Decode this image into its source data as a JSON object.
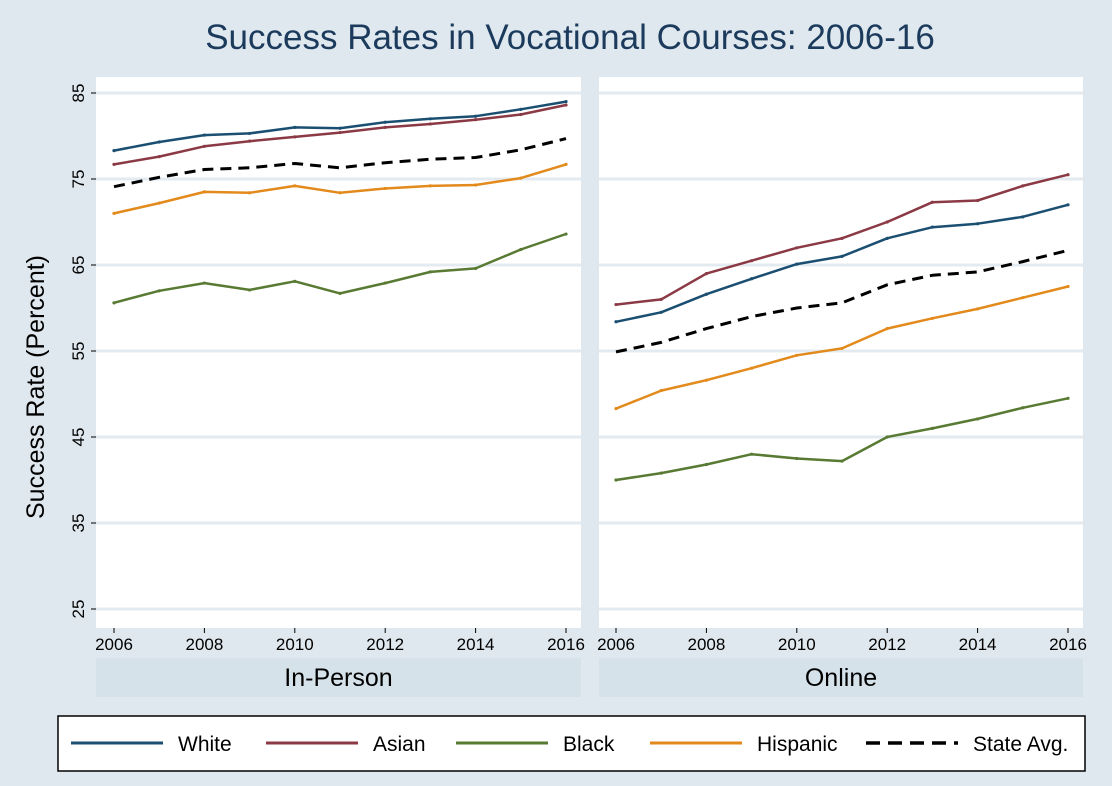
{
  "chart_data": {
    "type": "line",
    "title": "Success Rates in Vocational Courses: 2006-16",
    "ylabel": "Success Rate (Percent)",
    "ylim": [
      25,
      87
    ],
    "yticks": [
      25,
      35,
      45,
      55,
      65,
      75,
      85
    ],
    "xticks": [
      2006,
      2008,
      2010,
      2012,
      2014,
      2016
    ],
    "x": [
      2006,
      2007,
      2008,
      2009,
      2010,
      2011,
      2012,
      2013,
      2014,
      2015,
      2016
    ],
    "grid": true,
    "legend_position": "bottom",
    "panels": [
      {
        "label": "In-Person",
        "series": [
          {
            "name": "White",
            "color": "#1b4f72",
            "dash": false,
            "values": [
              78.3,
              79.3,
              80.1,
              80.3,
              81.0,
              80.9,
              81.6,
              82.0,
              82.3,
              83.1,
              84.0
            ]
          },
          {
            "name": "Asian",
            "color": "#8b3a45",
            "dash": false,
            "values": [
              76.7,
              77.6,
              78.8,
              79.4,
              79.9,
              80.4,
              81.0,
              81.4,
              81.9,
              82.5,
              83.6
            ]
          },
          {
            "name": "Black",
            "color": "#587a33",
            "dash": false,
            "values": [
              60.6,
              62.0,
              62.9,
              62.1,
              63.1,
              61.7,
              62.9,
              64.2,
              64.6,
              66.8,
              68.6
            ]
          },
          {
            "name": "Hispanic",
            "color": "#e38a1c",
            "dash": false,
            "values": [
              71.0,
              72.2,
              73.5,
              73.4,
              74.2,
              73.4,
              73.9,
              74.2,
              74.3,
              75.1,
              76.7
            ]
          },
          {
            "name": "State Avg.",
            "color": "#000000",
            "dash": true,
            "values": [
              74.1,
              75.2,
              76.1,
              76.3,
              76.8,
              76.3,
              76.9,
              77.3,
              77.5,
              78.4,
              79.7
            ]
          }
        ]
      },
      {
        "label": "Online",
        "series": [
          {
            "name": "White",
            "color": "#1b4f72",
            "dash": false,
            "values": [
              58.4,
              59.5,
              61.6,
              63.4,
              65.1,
              66.0,
              68.1,
              69.4,
              69.8,
              70.6,
              72.0
            ]
          },
          {
            "name": "Asian",
            "color": "#8b3a45",
            "dash": false,
            "values": [
              60.4,
              61.0,
              64.0,
              65.5,
              67.0,
              68.1,
              70.0,
              72.3,
              72.5,
              74.2,
              75.5
            ]
          },
          {
            "name": "Black",
            "color": "#587a33",
            "dash": false,
            "values": [
              40.0,
              40.8,
              41.8,
              43.0,
              42.5,
              42.2,
              45.0,
              46.0,
              47.1,
              48.4,
              49.5
            ]
          },
          {
            "name": "Hispanic",
            "color": "#e38a1c",
            "dash": false,
            "values": [
              48.3,
              50.4,
              51.6,
              53.0,
              54.5,
              55.3,
              57.6,
              58.8,
              59.9,
              61.2,
              62.5
            ]
          },
          {
            "name": "State Avg.",
            "color": "#000000",
            "dash": true,
            "values": [
              54.9,
              56.0,
              57.6,
              59.0,
              60.0,
              60.6,
              62.7,
              63.8,
              64.2,
              65.4,
              66.7
            ]
          }
        ]
      }
    ],
    "legend": [
      {
        "name": "White",
        "color": "#1b4f72",
        "dash": false
      },
      {
        "name": "Asian",
        "color": "#8b3a45",
        "dash": false
      },
      {
        "name": "Black",
        "color": "#587a33",
        "dash": false
      },
      {
        "name": "Hispanic",
        "color": "#e38a1c",
        "dash": false
      },
      {
        "name": "State Avg.",
        "color": "#000000",
        "dash": true
      }
    ],
    "colors": {
      "background": "#dfe8ee",
      "panel": "#ffffff",
      "strip": "#d6e2ea",
      "gridline": "#e3ebf1"
    }
  }
}
